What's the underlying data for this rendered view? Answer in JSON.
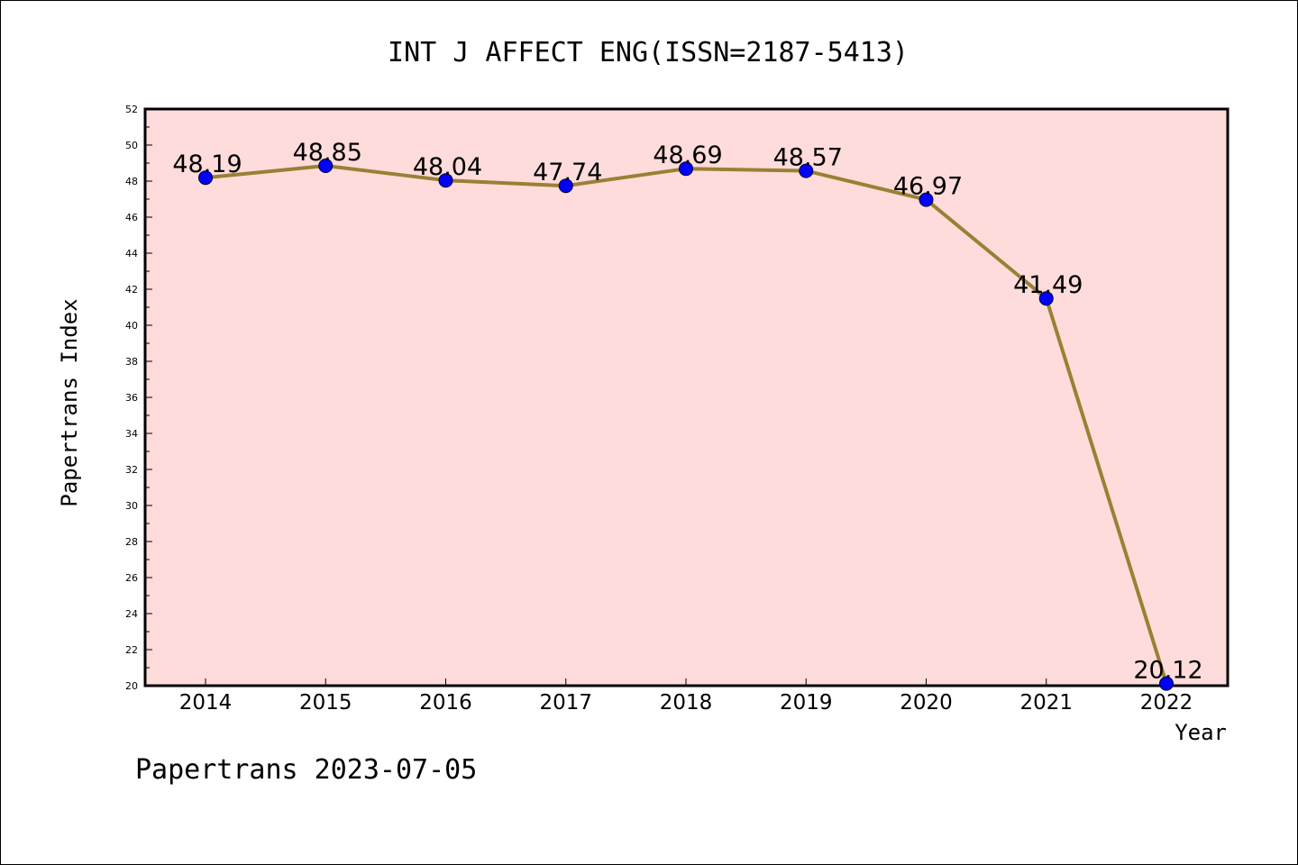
{
  "chart_data": {
    "type": "line",
    "title": "INT J AFFECT ENG(ISSN=2187-5413)",
    "xlabel": "Year",
    "ylabel": "Papertrans Index",
    "categories": [
      "2014",
      "2015",
      "2016",
      "2017",
      "2018",
      "2019",
      "2020",
      "2021",
      "2022"
    ],
    "series": [
      {
        "values": [
          48.19,
          48.85,
          48.04,
          47.74,
          48.69,
          48.57,
          46.97,
          41.49,
          20.12
        ],
        "labels": [
          "48.19",
          "48.85",
          "48.04",
          "47.74",
          "48.69",
          "48.57",
          "46.97",
          "41.49",
          "20.12"
        ]
      }
    ],
    "ylim": [
      20,
      52
    ],
    "yticks": [
      "20",
      "22",
      "24",
      "26",
      "28",
      "30",
      "32",
      "34",
      "36",
      "38",
      "40",
      "42",
      "44",
      "46",
      "48",
      "50",
      "52"
    ],
    "grid": false,
    "colors": {
      "plot_background": "#fddcdb",
      "line": "#9a8033",
      "marker": "#0000ff"
    }
  },
  "footer": "Papertrans 2023-07-05"
}
